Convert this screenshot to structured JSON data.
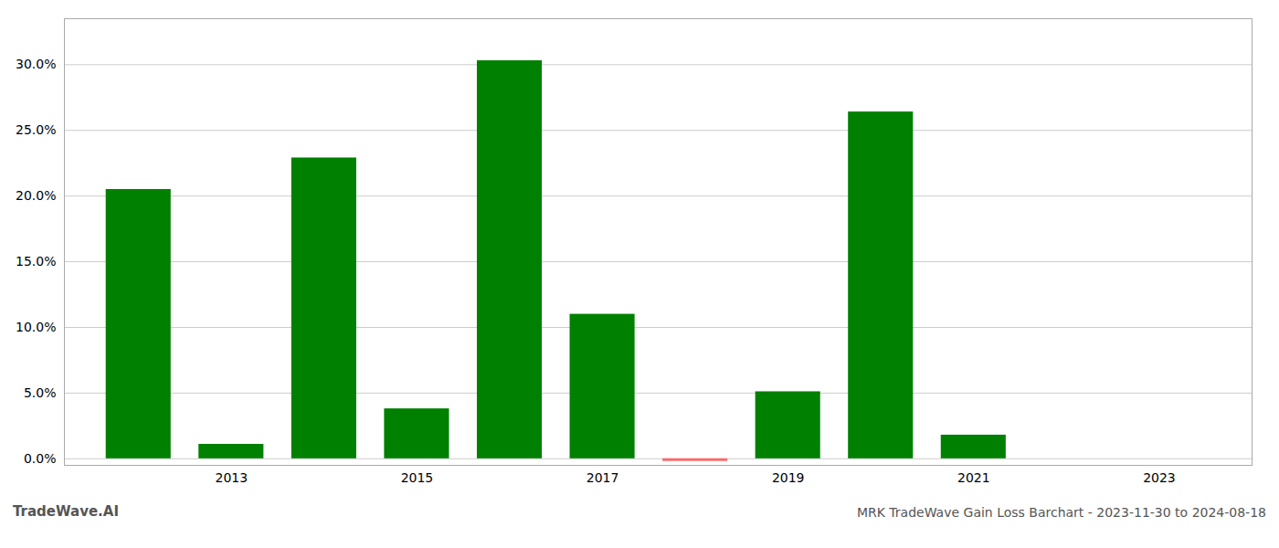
{
  "chart_data": {
    "type": "bar",
    "title": "MRK TradeWave Gain Loss Barchart - 2023-11-30 to 2024-08-18",
    "annotations": [
      "TradeWave.AI"
    ],
    "x": [
      2012,
      2013,
      2014,
      2015,
      2016,
      2017,
      2018,
      2019,
      2020,
      2021,
      2022
    ],
    "values": [
      0.205,
      0.011,
      0.229,
      0.038,
      0.303,
      0.11,
      -0.002,
      0.051,
      0.264,
      0.018,
      0.0
    ],
    "colors": [
      "#008000",
      "#008000",
      "#008000",
      "#008000",
      "#008000",
      "#008000",
      "#FF6666",
      "#008000",
      "#008000",
      "#008000",
      "#008000"
    ],
    "xlim": [
      2011.2,
      2024.0
    ],
    "xticks": [
      2013,
      2015,
      2017,
      2019,
      2021,
      2023
    ],
    "ylim": [
      -0.005,
      0.335
    ],
    "yticks": [
      {
        "value": 0.0,
        "label": "0.0%"
      },
      {
        "value": 0.05,
        "label": "5.0%"
      },
      {
        "value": 0.1,
        "label": "10.0%"
      },
      {
        "value": 0.15,
        "label": "15.0%"
      },
      {
        "value": 0.2,
        "label": "20.0%"
      },
      {
        "value": 0.25,
        "label": "25.0%"
      },
      {
        "value": 0.3,
        "label": "30.0%"
      }
    ],
    "grid": true
  }
}
